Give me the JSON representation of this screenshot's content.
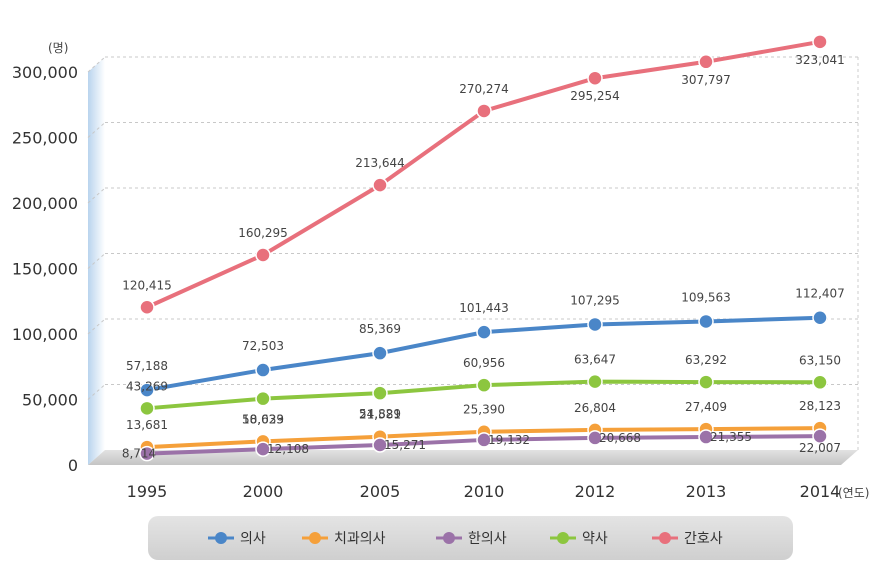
{
  "chart_data": {
    "type": "line",
    "categories": [
      "1995",
      "2000",
      "2005",
      "2010",
      "2012",
      "2013",
      "2014"
    ],
    "y_unit": "(명)",
    "x_unit": "(연도)",
    "ylim": [
      0,
      300000
    ],
    "y_ticks": [
      "0",
      "50,000",
      "100,000",
      "150,000",
      "200,000",
      "250,000",
      "300,000"
    ],
    "grid": true,
    "legend_position": "bottom",
    "series": [
      {
        "name": "의사",
        "color": "#4a86c8",
        "values": [
          57188,
          72503,
          85369,
          101443,
          107295,
          109563,
          112407
        ],
        "labels": [
          "57,188",
          "72,503",
          "85,369",
          "101,443",
          "107,295",
          "109,563",
          "112,407"
        ]
      },
      {
        "name": "치과의사",
        "color": "#f5a03a",
        "values": [
          13681,
          18039,
          21581,
          25390,
          26804,
          27409,
          28123
        ],
        "labels": [
          "13,681",
          "18,039",
          "21,581",
          "25,390",
          "26,804",
          "27,409",
          "28,123"
        ]
      },
      {
        "name": "한의사",
        "color": "#9b72a8",
        "values": [
          8714,
          12108,
          15271,
          19132,
          20668,
          21355,
          22007
        ],
        "labels": [
          "8,714",
          "12,108",
          "15,271",
          "19,132",
          "20,668",
          "21,355",
          "22,007"
        ]
      },
      {
        "name": "약사",
        "color": "#8cc63f",
        "values": [
          43269,
          50623,
          54829,
          60956,
          63647,
          63292,
          63150
        ],
        "labels": [
          "43,269",
          "50,623",
          "54,829",
          "60,956",
          "63,647",
          "63,292",
          "63,150"
        ]
      },
      {
        "name": "간호사",
        "color": "#e8707c",
        "values": [
          120415,
          160295,
          213644,
          270274,
          295254,
          307797,
          323041
        ],
        "labels": [
          "120,415",
          "160,295",
          "213,644",
          "270,274",
          "295,254",
          "307,797",
          "323,041"
        ]
      }
    ]
  }
}
